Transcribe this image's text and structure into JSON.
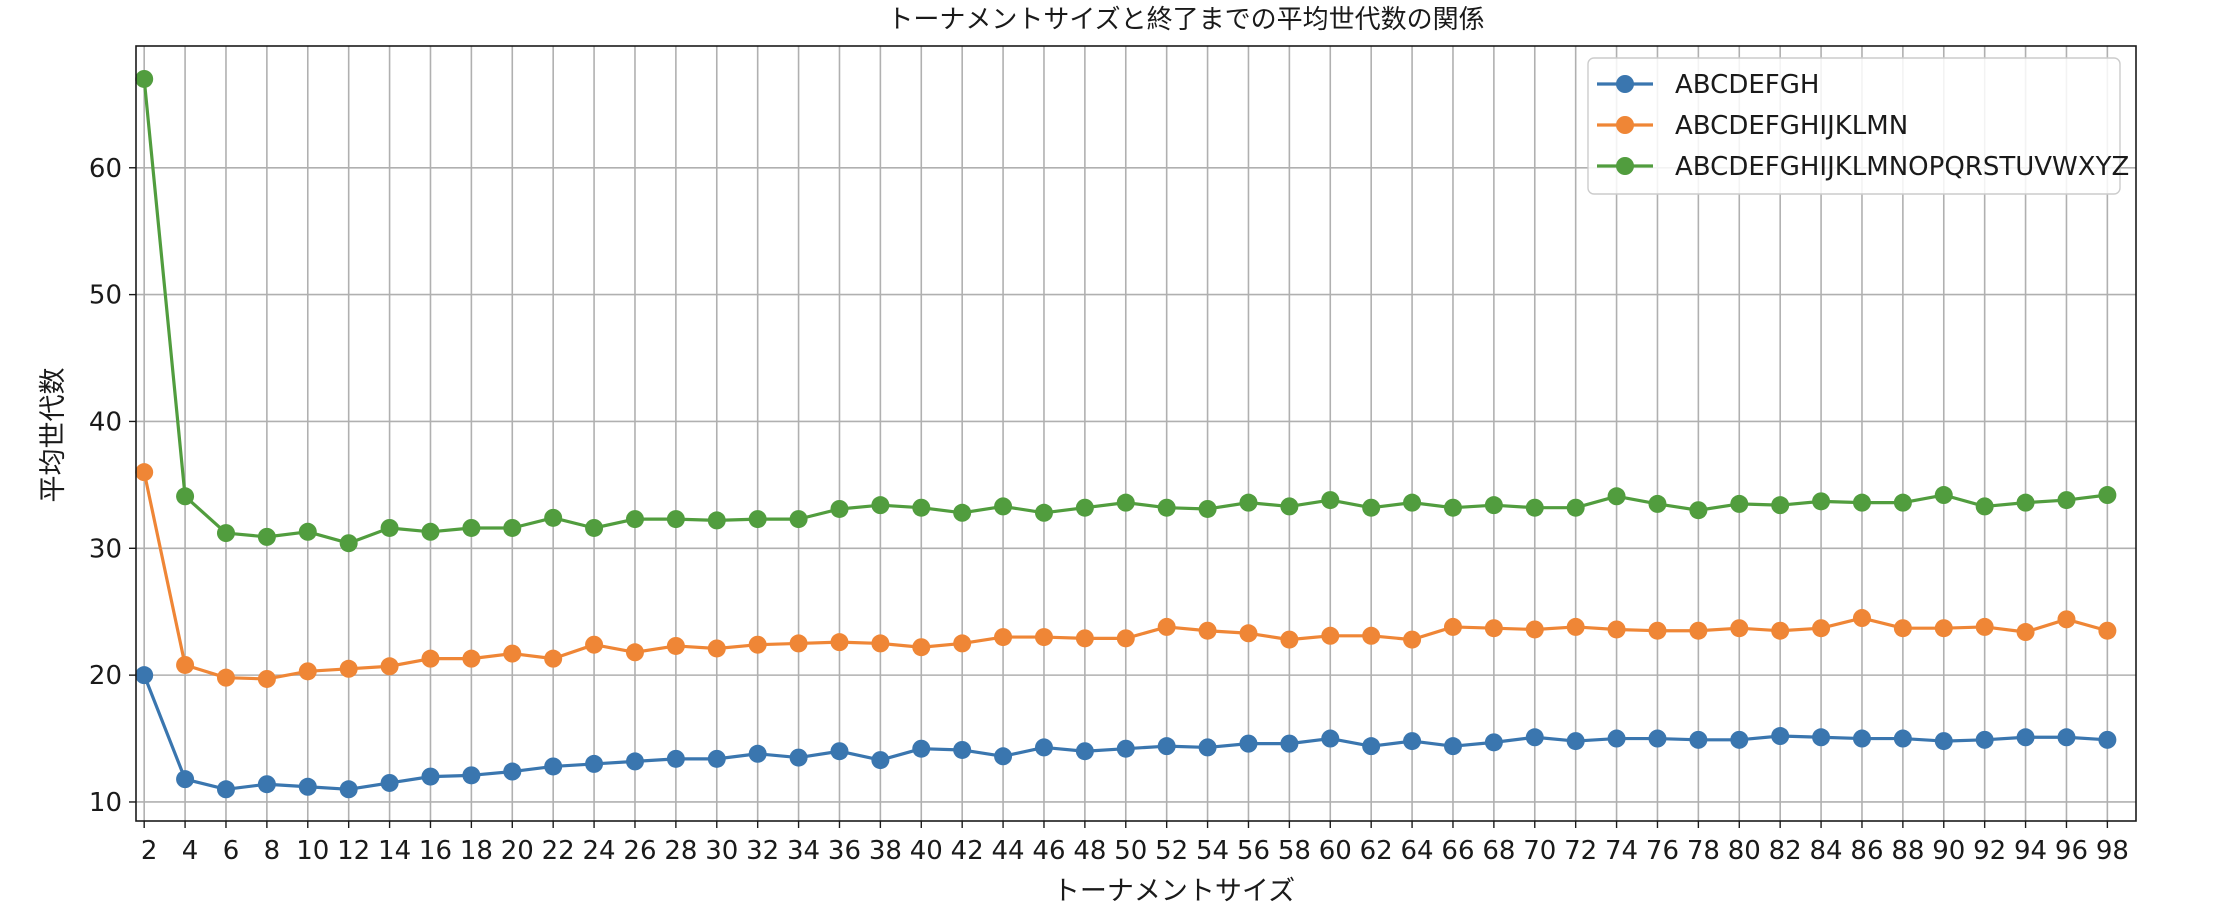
{
  "chart_data": {
    "type": "line",
    "title": "トーナメントサイズと終了までの平均世代数の関係",
    "xlabel": "トーナメントサイズ",
    "ylabel": "平均世代数",
    "x": [
      1,
      3,
      5,
      7,
      9,
      11,
      13,
      15,
      17,
      19,
      21,
      23,
      25,
      27,
      29,
      31,
      33,
      35,
      37,
      39,
      41,
      43,
      45,
      47,
      49,
      51,
      53,
      55,
      57,
      59,
      61,
      63,
      65,
      67,
      69,
      71,
      73,
      75,
      77,
      79,
      81,
      83,
      85,
      87,
      89,
      91,
      93,
      95,
      97
    ],
    "xticks": [
      2,
      4,
      6,
      8,
      10,
      12,
      14,
      16,
      18,
      20,
      22,
      24,
      26,
      28,
      30,
      32,
      34,
      36,
      38,
      40,
      42,
      44,
      46,
      48,
      50,
      52,
      54,
      56,
      58,
      60,
      62,
      64,
      66,
      68,
      70,
      72,
      74,
      76,
      78,
      80,
      82,
      84,
      86,
      88,
      90,
      92,
      94,
      96,
      98
    ],
    "yticks": [
      10,
      20,
      30,
      40,
      50,
      60
    ],
    "xlim": [
      0.6,
      98.4
    ],
    "ylim": [
      8.5,
      69.6
    ],
    "grid": true,
    "legend_position": "top-right",
    "series": [
      {
        "name": "ABCDEFGH",
        "color": "#3a76af",
        "values": [
          20.0,
          11.8,
          11.0,
          11.4,
          11.2,
          11.0,
          11.5,
          12.0,
          12.1,
          12.4,
          12.8,
          13.0,
          13.2,
          13.4,
          13.4,
          13.8,
          13.5,
          14.0,
          13.3,
          14.2,
          14.1,
          13.6,
          14.3,
          14.0,
          14.2,
          14.4,
          14.3,
          14.6,
          14.6,
          15.0,
          14.4,
          14.8,
          14.4,
          14.7,
          15.1,
          14.8,
          15.0,
          15.0,
          14.9,
          14.9,
          15.2,
          15.1,
          15.0,
          15.0,
          14.8,
          14.9,
          15.1,
          15.1,
          14.9
        ]
      },
      {
        "name": "ABCDEFGHIJKLMN",
        "color": "#ef8636",
        "values": [
          36.0,
          20.8,
          19.8,
          19.7,
          20.3,
          20.5,
          20.7,
          21.3,
          21.3,
          21.7,
          21.3,
          22.4,
          21.8,
          22.3,
          22.1,
          22.4,
          22.5,
          22.6,
          22.5,
          22.2,
          22.5,
          23.0,
          23.0,
          22.9,
          22.9,
          23.8,
          23.5,
          23.3,
          22.8,
          23.1,
          23.1,
          22.8,
          23.8,
          23.7,
          23.6,
          23.8,
          23.6,
          23.5,
          23.5,
          23.7,
          23.5,
          23.7,
          24.5,
          23.7,
          23.7,
          23.8,
          23.4,
          24.4,
          23.5
        ]
      },
      {
        "name": "ABCDEFGHIJKLMNOPQRSTUVWXYZ",
        "color": "#519d3e",
        "values": [
          67.0,
          34.1,
          31.2,
          30.9,
          31.3,
          30.4,
          31.6,
          31.3,
          31.6,
          31.6,
          32.4,
          31.6,
          32.3,
          32.3,
          32.2,
          32.3,
          32.3,
          33.1,
          33.4,
          33.2,
          32.8,
          33.3,
          32.8,
          33.2,
          33.6,
          33.2,
          33.1,
          33.6,
          33.3,
          33.8,
          33.2,
          33.6,
          33.2,
          33.4,
          33.2,
          33.2,
          34.1,
          33.5,
          33.0,
          33.5,
          33.4,
          33.7,
          33.6,
          33.6,
          34.2,
          33.3,
          33.6,
          33.8,
          34.2
        ]
      }
    ]
  }
}
